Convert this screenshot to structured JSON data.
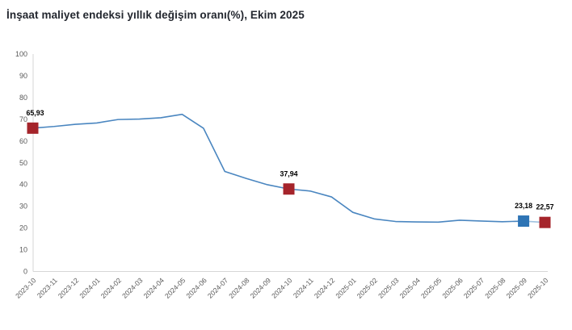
{
  "title": "İnşaat maliyet endeksi yıllık değişim oranı(%), Ekim 2025",
  "chart_data": {
    "type": "line",
    "title": "İnşaat maliyet endeksi yıllık değişim oranı(%), Ekim 2025",
    "xlabel": "",
    "ylabel": "",
    "ylim": [
      0,
      100
    ],
    "ytick_step": 10,
    "grid": false,
    "legend": false,
    "categories": [
      "2023-10",
      "2023-11",
      "2023-12",
      "2024-01",
      "2024-02",
      "2024-03",
      "2024-04",
      "2024-05",
      "2024-06",
      "2024-07",
      "2024-08",
      "2024-09",
      "2024-10",
      "2024-11",
      "2024-12",
      "2025-01",
      "2025-02",
      "2025-03",
      "2025-04",
      "2025-05",
      "2025-06",
      "2025-07",
      "2025-08",
      "2025-09",
      "2025-10"
    ],
    "values": [
      65.93,
      66.7,
      67.7,
      68.3,
      69.9,
      70.1,
      70.7,
      72.3,
      65.9,
      46.0,
      42.8,
      39.9,
      37.94,
      37.0,
      34.3,
      27.2,
      24.2,
      23.0,
      22.8,
      22.7,
      23.6,
      23.2,
      22.9,
      23.18,
      22.57
    ],
    "highlighted_points": [
      {
        "index": 0,
        "category": "2023-10",
        "value": 65.93,
        "label": "65,93",
        "marker": "square",
        "color": "#a5242b"
      },
      {
        "index": 12,
        "category": "2024-10",
        "value": 37.94,
        "label": "37,94",
        "marker": "square",
        "color": "#a5242b"
      },
      {
        "index": 23,
        "category": "2025-09",
        "value": 23.18,
        "label": "23,18",
        "marker": "square",
        "color": "#2e74b5"
      },
      {
        "index": 24,
        "category": "2025-10",
        "value": 22.57,
        "label": "22,57",
        "marker": "square",
        "color": "#a5242b"
      }
    ],
    "colors": {
      "line": "#4a86c0",
      "line_end_fade": "#9fc2e0",
      "axis": "#d6d6d6",
      "tick_label": "#595959",
      "data_label": "#000000",
      "background": "#ffffff"
    }
  }
}
